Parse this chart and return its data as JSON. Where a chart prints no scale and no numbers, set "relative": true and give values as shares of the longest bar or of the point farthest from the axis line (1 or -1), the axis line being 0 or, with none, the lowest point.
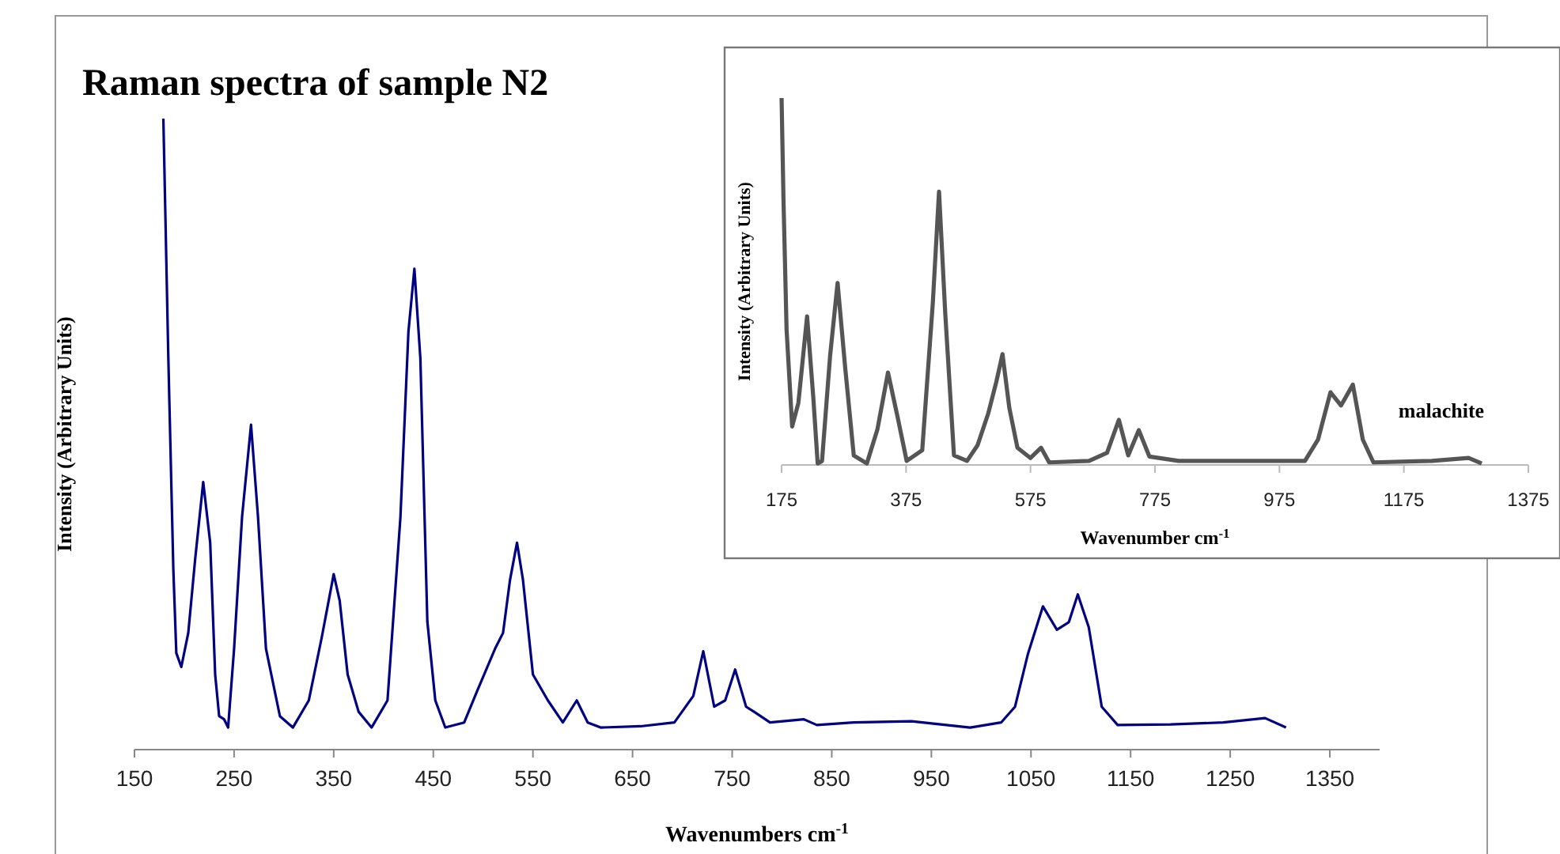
{
  "chart_data": [
    {
      "type": "line",
      "title": "Raman spectra of sample N2",
      "xlabel": "Wavenumbers cm$^{-1}$",
      "ylabel": "Intensity (Arbitrary Units)",
      "relative": true,
      "xlim": [
        150,
        1400
      ],
      "xticks": [
        150,
        250,
        350,
        450,
        550,
        650,
        750,
        850,
        950,
        1050,
        1150,
        1250,
        1350
      ],
      "grid": false,
      "line_style": "solid",
      "series": [
        {
          "color": "#000080",
          "x": [
            179,
            184,
            189,
            192,
            197,
            204,
            211,
            219,
            226,
            231,
            235,
            240,
            244,
            250,
            258,
            267,
            274,
            282,
            296,
            309,
            325,
            338,
            350,
            356,
            364,
            375,
            388,
            404,
            417,
            425,
            431,
            437,
            444,
            452,
            462,
            481,
            494,
            512,
            520,
            527,
            534,
            540,
            550,
            565,
            580,
            594,
            605,
            618,
            658,
            692,
            711,
            721,
            732,
            743,
            753,
            764,
            772,
            788,
            822,
            835,
            872,
            930,
            989,
            1020,
            1034,
            1047,
            1062,
            1076,
            1088,
            1097,
            1108,
            1121,
            1137,
            1190,
            1243,
            1285,
            1306
          ],
          "values": [
            1.0,
            0.62,
            0.286,
            0.153,
            0.131,
            0.185,
            0.303,
            0.424,
            0.328,
            0.119,
            0.053,
            0.048,
            0.035,
            0.16,
            0.369,
            0.515,
            0.369,
            0.16,
            0.053,
            0.035,
            0.078,
            0.178,
            0.278,
            0.236,
            0.119,
            0.06,
            0.035,
            0.078,
            0.369,
            0.662,
            0.762,
            0.62,
            0.203,
            0.078,
            0.035,
            0.043,
            0.093,
            0.16,
            0.185,
            0.269,
            0.328,
            0.269,
            0.119,
            0.078,
            0.043,
            0.078,
            0.043,
            0.035,
            0.037,
            0.043,
            0.085,
            0.156,
            0.068,
            0.078,
            0.127,
            0.068,
            0.06,
            0.043,
            0.048,
            0.039,
            0.043,
            0.045,
            0.035,
            0.043,
            0.068,
            0.152,
            0.227,
            0.19,
            0.202,
            0.246,
            0.194,
            0.068,
            0.039,
            0.04,
            0.043,
            0.05,
            0.035
          ]
        }
      ]
    },
    {
      "type": "line",
      "xlabel": "Wavenumber cm$^{-1}$",
      "ylabel": "Intensity (Arbitrary Units)",
      "relative": true,
      "xlim": [
        175,
        1375
      ],
      "xticks": [
        175,
        375,
        575,
        775,
        975,
        1175,
        1375
      ],
      "grid": false,
      "line_style": "solid",
      "annotations": [
        "malachite"
      ],
      "series": [
        {
          "color": "#555555",
          "x": [
            175,
            178,
            183,
            192,
            202,
            216,
            226,
            233,
            240,
            253,
            265,
            277,
            291,
            312,
            329,
            346,
            362,
            376,
            401,
            418,
            428,
            438,
            452,
            473,
            490,
            507,
            520,
            530,
            541,
            554,
            575,
            592,
            605,
            669,
            698,
            717,
            732,
            749,
            766,
            813,
            923,
            1016,
            1037,
            1057,
            1074,
            1093,
            1109,
            1126,
            1220,
            1279,
            1300
          ],
          "values": [
            1.0,
            0.728,
            0.37,
            0.105,
            0.169,
            0.405,
            0.183,
            0.004,
            0.011,
            0.298,
            0.496,
            0.269,
            0.026,
            0.004,
            0.097,
            0.252,
            0.126,
            0.011,
            0.04,
            0.441,
            0.745,
            0.413,
            0.026,
            0.011,
            0.054,
            0.14,
            0.226,
            0.302,
            0.155,
            0.047,
            0.019,
            0.047,
            0.007,
            0.011,
            0.033,
            0.123,
            0.026,
            0.095,
            0.023,
            0.011,
            0.011,
            0.011,
            0.069,
            0.198,
            0.162,
            0.219,
            0.069,
            0.007,
            0.011,
            0.019,
            0.004
          ]
        }
      ]
    }
  ]
}
